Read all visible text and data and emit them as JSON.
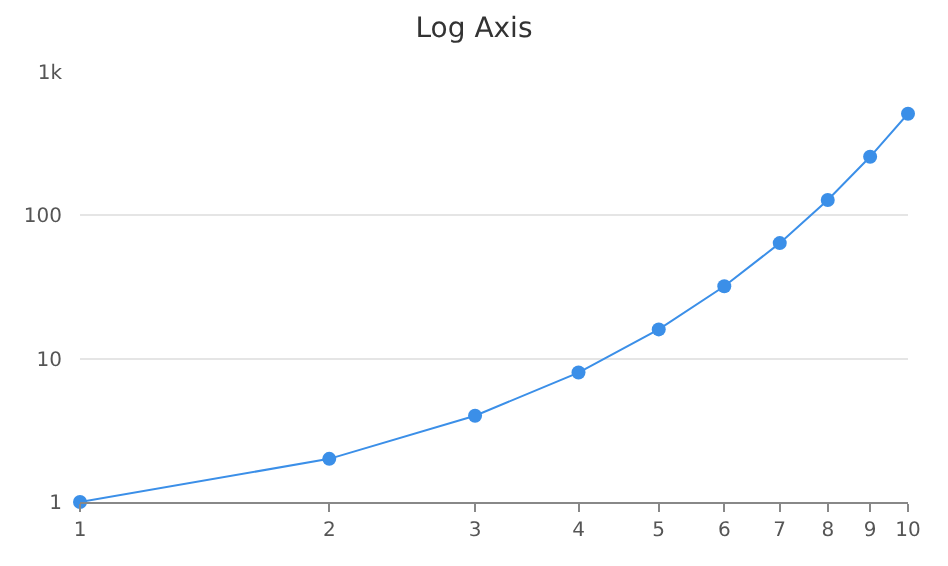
{
  "chart_data": {
    "type": "line",
    "title": "Log Axis",
    "x": [
      1,
      2,
      3,
      4,
      5,
      6,
      7,
      8,
      9,
      10
    ],
    "series": [
      {
        "color": "#3b8fe8",
        "values": [
          1,
          2,
          4,
          8,
          16,
          32,
          64,
          128,
          256,
          512
        ]
      }
    ],
    "xlim": [
      1,
      10
    ],
    "xticks": [
      1,
      2,
      3,
      4,
      5,
      6,
      7,
      8,
      9,
      10
    ],
    "ylim": [
      1,
      1000
    ],
    "yticks": [
      1,
      10,
      100,
      {
        "value": 1000,
        "label": "1k"
      }
    ],
    "log": "xy",
    "grid": "y",
    "legend": false,
    "marker": "circle",
    "line_style": "solid"
  }
}
